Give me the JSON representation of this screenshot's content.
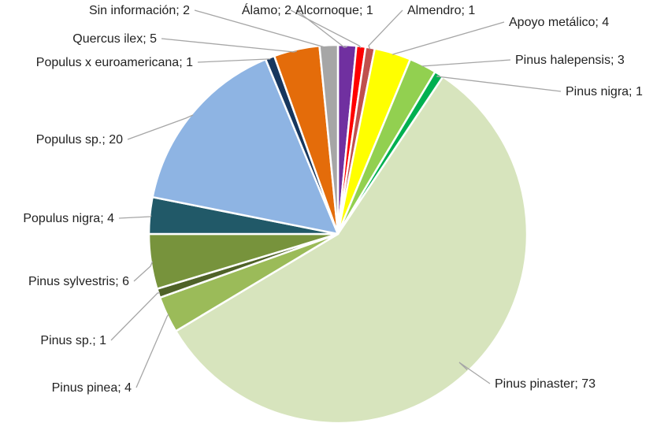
{
  "chart_data": {
    "type": "pie",
    "title": "",
    "slices": [
      {
        "label": "Álamo",
        "value": 2,
        "color": "#7030A0"
      },
      {
        "label": "Alcornoque",
        "value": 1,
        "color": "#FF0000"
      },
      {
        "label": "Almendro",
        "value": 1,
        "color": "#C0504D"
      },
      {
        "label": "Apoyo metálico",
        "value": 4,
        "color": "#FFFF00"
      },
      {
        "label": "Pinus halepensis",
        "value": 3,
        "color": "#92D050"
      },
      {
        "label": "Pinus nigra",
        "value": 1,
        "color": "#00B050"
      },
      {
        "label": "Pinus pinaster",
        "value": 73,
        "color": "#D7E4BD"
      },
      {
        "label": "Pinus pinea",
        "value": 4,
        "color": "#9BBB59"
      },
      {
        "label": "Pinus sp.",
        "value": 1,
        "color": "#4F6228"
      },
      {
        "label": "Pinus sylvestris",
        "value": 6,
        "color": "#77933C"
      },
      {
        "label": "Populus nigra",
        "value": 4,
        "color": "#215968"
      },
      {
        "label": "Populus sp.",
        "value": 20,
        "color": "#8EB4E3"
      },
      {
        "label": "Populus x euroamericana",
        "value": 1,
        "color": "#17375E"
      },
      {
        "label": "Quercus ilex",
        "value": 5,
        "color": "#E46C0A"
      },
      {
        "label": "Sin información",
        "value": 2,
        "color": "#A6A6A6"
      }
    ],
    "label_format": "{label}; {value}",
    "legend": "none",
    "leader_line_color": "#A6A6A6",
    "slice_border_color": "#FFFFFF"
  }
}
